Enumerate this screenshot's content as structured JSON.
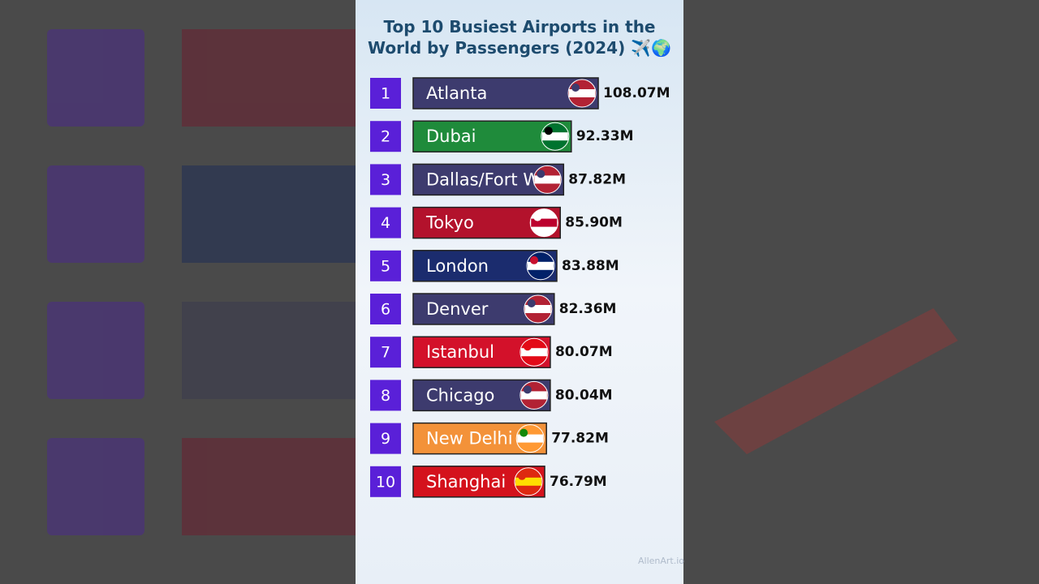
{
  "chart_data": {
    "type": "bar",
    "title": "Top 10 Busiest Airports in the World by Passengers (2024) ✈️🌍",
    "ranks": [
      1,
      2,
      3,
      4,
      5,
      6,
      7,
      8,
      9,
      10
    ],
    "categories": [
      "Atlanta",
      "Dubai",
      "Dallas/Fort Worth",
      "Tokyo",
      "London",
      "Denver",
      "Istanbul",
      "Chicago",
      "New Delhi",
      "Shanghai"
    ],
    "values": [
      108.07,
      92.33,
      87.82,
      85.9,
      83.88,
      82.36,
      80.07,
      80.04,
      77.82,
      76.79
    ],
    "value_labels": [
      "108.07M",
      "92.33M",
      "87.82M",
      "85.90M",
      "83.88M",
      "82.36M",
      "80.07M",
      "80.04M",
      "77.82M",
      "76.79M"
    ],
    "colors": [
      "#3d3b6e",
      "#1f8b3b",
      "#3d3b6e",
      "#b3122c",
      "#1b2c6e",
      "#3d3b6e",
      "#d3112a",
      "#3d3b6e",
      "#f39239",
      "#d4121c"
    ],
    "rank_color": "#5a20d8",
    "watermark": "AllenArt.io"
  }
}
